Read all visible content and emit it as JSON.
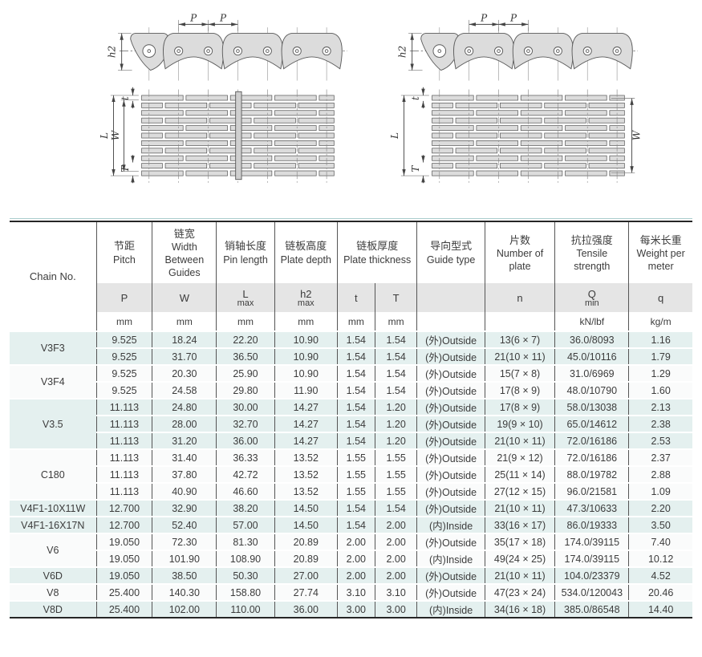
{
  "diagrams": {
    "left": {
      "pitch_a": "P",
      "pitch_b": "P",
      "h2": "h2",
      "L": "L",
      "W": "W",
      "t": "t",
      "T": "T"
    },
    "right": {
      "pitch_a": "P",
      "pitch_b": "P",
      "h2": "h2",
      "L": "L",
      "W": "W",
      "t": "t",
      "T": "T"
    }
  },
  "table": {
    "header": {
      "chain_no": "Chain No.",
      "columns": [
        {
          "cn": "节距",
          "en": "Pitch",
          "symbol": "P",
          "unit": "mm"
        },
        {
          "cn": "链宽",
          "en": "Width Between Guides",
          "symbol": "W",
          "unit": "mm"
        },
        {
          "cn": "销轴长度",
          "en": "Pin length",
          "symbol": "L",
          "symbol_sub": "max",
          "unit": "mm"
        },
        {
          "cn": "链板高度",
          "en": "Plate depth",
          "symbol": "h2",
          "symbol_sub": "max",
          "unit": "mm"
        },
        {
          "cn": "链板厚度",
          "en": "Plate thickness",
          "sub_columns": [
            {
              "symbol": "t",
              "unit": "mm"
            },
            {
              "symbol": "T",
              "unit": "mm"
            }
          ]
        },
        {
          "cn": "导向型式",
          "en": "Guide type",
          "symbol": "",
          "unit": ""
        },
        {
          "cn": "片数",
          "en": "Number of plate",
          "symbol": "n",
          "unit": ""
        },
        {
          "cn": "抗拉强度",
          "en": "Tensile strength",
          "symbol": "Q",
          "symbol_sub": "min",
          "unit": "kN/lbf"
        },
        {
          "cn": "每米长重",
          "en": "Weight per meter",
          "symbol": "q",
          "unit": "kg/m"
        }
      ]
    },
    "groups": [
      {
        "chain_no": "V3F3",
        "band": "blue",
        "rows": [
          [
            "9.525",
            "18.24",
            "22.20",
            "10.90",
            "1.54",
            "1.54",
            "(外)Outside",
            "13(6 × 7)",
            "36.0/8093",
            "1.16"
          ],
          [
            "9.525",
            "31.70",
            "36.50",
            "10.90",
            "1.54",
            "1.54",
            "(外)Outside",
            "21(10 × 11)",
            "45.0/10116",
            "1.79"
          ]
        ]
      },
      {
        "chain_no": "V3F4",
        "band": "white",
        "rows": [
          [
            "9.525",
            "20.30",
            "25.90",
            "10.90",
            "1.54",
            "1.54",
            "(外)Outside",
            "15(7 × 8)",
            "31.0/6969",
            "1.29"
          ],
          [
            "9.525",
            "24.58",
            "29.80",
            "11.90",
            "1.54",
            "1.54",
            "(外)Outside",
            "17(8 × 9)",
            "48.0/10790",
            "1.60"
          ]
        ]
      },
      {
        "chain_no": "V3.5",
        "band": "blue",
        "rows": [
          [
            "11.113",
            "24.80",
            "30.00",
            "14.27",
            "1.54",
            "1.20",
            "(外)Outside",
            "17(8 × 9)",
            "58.0/13038",
            "2.13"
          ],
          [
            "11.113",
            "28.00",
            "32.70",
            "14.27",
            "1.54",
            "1.20",
            "(外)Outside",
            "19(9 × 10)",
            "65.0/14612",
            "2.38"
          ],
          [
            "11.113",
            "31.20",
            "36.00",
            "14.27",
            "1.54",
            "1.20",
            "(外)Outside",
            "21(10 × 11)",
            "72.0/16186",
            "2.53"
          ]
        ]
      },
      {
        "chain_no": "C180",
        "band": "white",
        "rows": [
          [
            "11.113",
            "31.40",
            "36.33",
            "13.52",
            "1.55",
            "1.55",
            "(外)Outside",
            "21(9 × 12)",
            "72.0/16186",
            "2.37"
          ],
          [
            "11.113",
            "37.80",
            "42.72",
            "13.52",
            "1.55",
            "1.55",
            "(外)Outside",
            "25(11 × 14)",
            "88.0/19782",
            "2.88"
          ],
          [
            "11.113",
            "40.90",
            "46.60",
            "13.52",
            "1.55",
            "1.55",
            "(外)Outside",
            "27(12 × 15)",
            "96.0/21581",
            "1.09"
          ]
        ]
      },
      {
        "chain_no": "V4F1-10X11W",
        "band": "blue",
        "rows": [
          [
            "12.700",
            "32.90",
            "38.20",
            "14.50",
            "1.54",
            "1.54",
            "(外)Outside",
            "21(10 × 11)",
            "47.3/10633",
            "2.20"
          ]
        ]
      },
      {
        "chain_no": "V4F1-16X17N",
        "band": "blue",
        "rows": [
          [
            "12.700",
            "52.40",
            "57.00",
            "14.50",
            "1.54",
            "2.00",
            "(内)Inside",
            "33(16 × 17)",
            "86.0/19333",
            "3.50"
          ]
        ]
      },
      {
        "chain_no": "V6",
        "band": "white",
        "rows": [
          [
            "19.050",
            "72.30",
            "81.30",
            "20.89",
            "2.00",
            "2.00",
            "(外)Outside",
            "35(17 × 18)",
            "174.0/39115",
            "7.40"
          ],
          [
            "19.050",
            "101.90",
            "108.90",
            "20.89",
            "2.00",
            "2.00",
            "(内)Inside",
            "49(24 × 25)",
            "174.0/39115",
            "10.12"
          ]
        ]
      },
      {
        "chain_no": "V6D",
        "band": "blue",
        "rows": [
          [
            "19.050",
            "38.50",
            "50.30",
            "27.00",
            "2.00",
            "2.00",
            "(外)Outside",
            "21(10 × 11)",
            "104.0/23379",
            "4.52"
          ]
        ]
      },
      {
        "chain_no": "V8",
        "band": "white",
        "rows": [
          [
            "25.400",
            "140.30",
            "158.80",
            "27.74",
            "3.10",
            "3.10",
            "(外)Outside",
            "47(23 × 24)",
            "534.0/120043",
            "20.46"
          ]
        ]
      },
      {
        "chain_no": "V8D",
        "band": "blue",
        "rows": [
          [
            "25.400",
            "102.00",
            "110.00",
            "36.00",
            "3.00",
            "3.00",
            "(内)Inside",
            "34(16 × 18)",
            "385.0/86548",
            "14.40"
          ]
        ]
      }
    ]
  }
}
